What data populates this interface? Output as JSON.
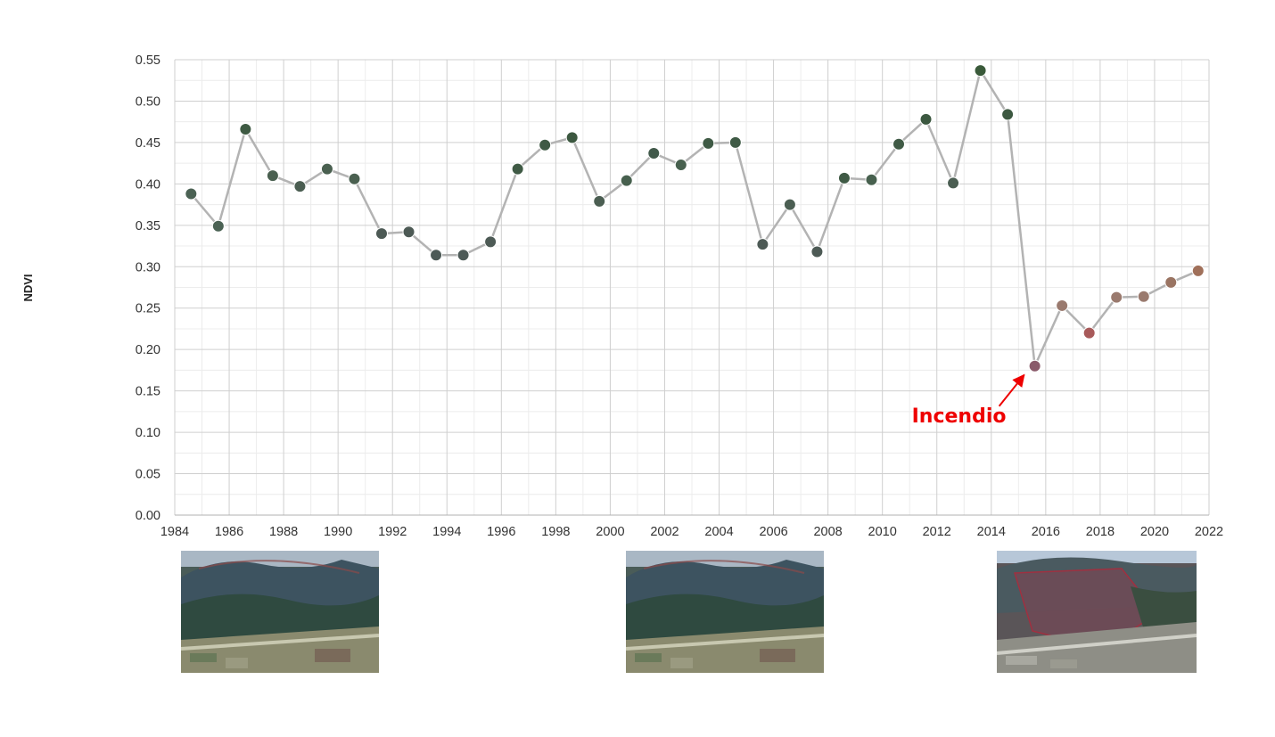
{
  "chart_data": {
    "type": "scatter",
    "ylabel": "NDVI",
    "xlabel": "",
    "title": "",
    "xlim": [
      1984,
      2022
    ],
    "ylim": [
      0,
      0.55
    ],
    "x_ticks": [
      "1984",
      "1986",
      "1988",
      "1990",
      "1992",
      "1994",
      "1996",
      "1998",
      "2000",
      "2002",
      "2004",
      "2006",
      "2008",
      "2010",
      "2012",
      "2014",
      "2016",
      "2018",
      "2020",
      "2022"
    ],
    "y_ticks": [
      "0.00",
      "0.05",
      "0.10",
      "0.15",
      "0.20",
      "0.25",
      "0.30",
      "0.35",
      "0.40",
      "0.45",
      "0.50",
      "0.55"
    ],
    "grid": true,
    "series": [
      {
        "x": [
          1984.6,
          1985.6,
          1986.6,
          1987.6,
          1988.6,
          1989.6,
          1990.6,
          1991.6,
          1992.6,
          1993.6,
          1994.6,
          1995.6,
          1996.6,
          1997.6,
          1998.6,
          1999.6,
          2000.6,
          2001.6,
          2002.6,
          2003.6,
          2004.6,
          2005.6,
          2006.6,
          2007.6,
          2008.6,
          2009.6,
          2010.6,
          2011.6,
          2012.6,
          2013.6,
          2014.6,
          2015.6,
          2016.6,
          2017.6,
          2018.6,
          2019.6,
          2020.6,
          2021.6
        ],
        "y": [
          0.388,
          0.349,
          0.466,
          0.41,
          0.397,
          0.418,
          0.406,
          0.34,
          0.342,
          0.314,
          0.314,
          0.33,
          0.418,
          0.447,
          0.456,
          0.379,
          0.404,
          0.437,
          0.423,
          0.449,
          0.45,
          0.327,
          0.375,
          0.318,
          0.407,
          0.405,
          0.448,
          0.478,
          0.401,
          0.537,
          0.484,
          0.18,
          0.253,
          0.22,
          0.263,
          0.264,
          0.281,
          0.295
        ],
        "colors": [
          "#4b6254",
          "#4b6254",
          "#3e5a43",
          "#4a6050",
          "#4b5e52",
          "#4a6050",
          "#4a6050",
          "#4d5a55",
          "#4d5a55",
          "#4d5a57",
          "#4d5a57",
          "#4d5a55",
          "#3f5a45",
          "#3f5a45",
          "#3c5840",
          "#4b5e52",
          "#47604e",
          "#41594a",
          "#47604e",
          "#3f5a45",
          "#3f5a45",
          "#4d5a55",
          "#4b5e52",
          "#4d5a55",
          "#3f5a45",
          "#47604e",
          "#3f5a45",
          "#3c5840",
          "#4b5e52",
          "#3a5a3a",
          "#3c5840",
          "#8a5a6a",
          "#9a7a6e",
          "#a85a5a",
          "#9a7a6e",
          "#9a7a6e",
          "#9a7462",
          "#a0705a"
        ]
      }
    ],
    "line_color": "#b3b3b3",
    "annotations": [
      {
        "text": "Incendio",
        "x": 2015.6,
        "y": 0.18,
        "color": "#ee0000"
      }
    ]
  }
}
